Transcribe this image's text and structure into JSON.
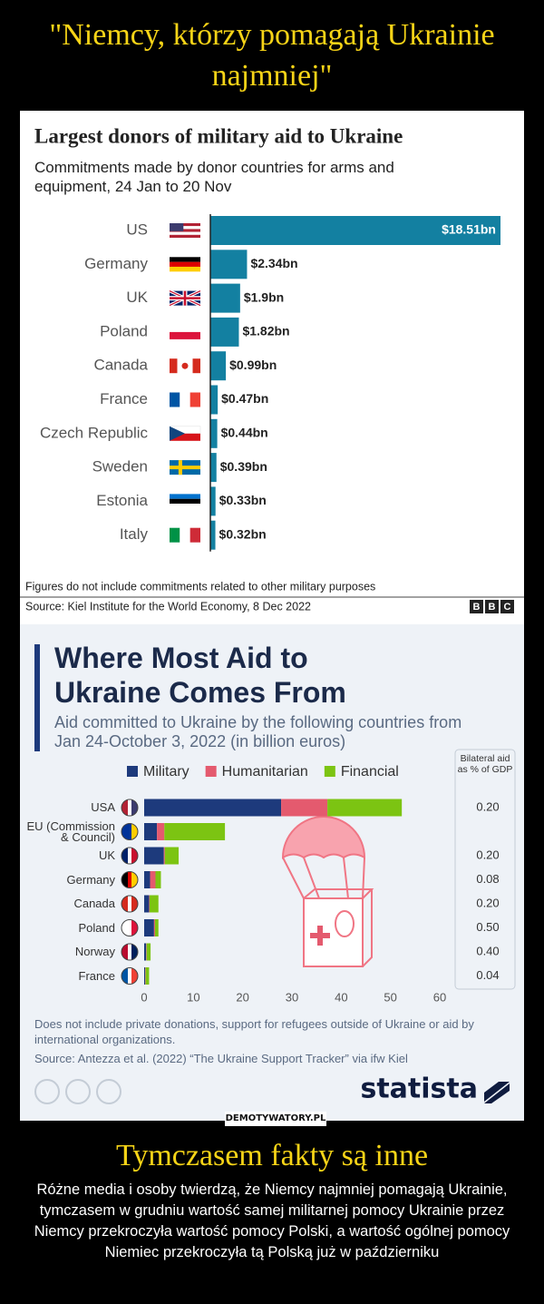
{
  "header": {
    "title": "\"Niemcy, którzy pomagają Ukrainie najmniej\""
  },
  "chart_data": [
    {
      "type": "bar",
      "orientation": "horizontal",
      "title": "Largest donors of military aid to Ukraine",
      "subtitle": "Commitments made by donor countries for arms and equipment, 24 Jan to 20 Nov",
      "categories": [
        "US",
        "Germany",
        "UK",
        "Poland",
        "Canada",
        "France",
        "Czech Republic",
        "Sweden",
        "Estonia",
        "Italy"
      ],
      "values": [
        18.51,
        2.34,
        1.9,
        1.82,
        0.99,
        0.47,
        0.44,
        0.39,
        0.33,
        0.32
      ],
      "value_labels": [
        "$18.51bn",
        "$2.34bn",
        "$1.9bn",
        "$1.82bn",
        "$0.99bn",
        "$0.47bn",
        "$0.44bn",
        "$0.39bn",
        "$0.33bn",
        "$0.32bn"
      ],
      "color": "#1380a1",
      "note": "Figures do not include commitments related to other military purposes",
      "source": "Source: Kiel Institute for the World Economy, 8 Dec 2022",
      "logo": [
        "B",
        "B",
        "C"
      ]
    },
    {
      "type": "stacked_bar",
      "orientation": "horizontal",
      "title": "Where Most Aid to Ukraine Comes From",
      "subtitle": "Aid committed to Ukraine by the following countries from Jan 24-October 3, 2022 (in billion euros)",
      "categories": [
        "USA",
        "EU (Commission & Council)",
        "UK",
        "Germany",
        "Canada",
        "Poland",
        "Norway",
        "France"
      ],
      "series": [
        {
          "name": "Military",
          "color": "#1d3a7c",
          "values": [
            27.8,
            2.6,
            4.0,
            1.2,
            1.0,
            2.0,
            0.4,
            0.2
          ]
        },
        {
          "name": "Humanitarian",
          "color": "#e45a6e",
          "values": [
            9.4,
            1.5,
            0.2,
            1.1,
            0.1,
            0.2,
            0.1,
            0.1
          ]
        },
        {
          "name": "Financial",
          "color": "#7cc412",
          "values": [
            15.1,
            12.3,
            2.8,
            1.1,
            1.8,
            0.7,
            0.8,
            0.7
          ]
        }
      ],
      "xlim": [
        0,
        60
      ],
      "xticks": [
        0,
        10,
        20,
        30,
        40,
        50,
        60
      ],
      "grid": false,
      "legend": "top",
      "gdp_share": {
        "title": "Bilateral aid as % of GDP",
        "values": [
          0.2,
          null,
          0.2,
          0.08,
          0.2,
          0.5,
          0.4,
          0.04
        ],
        "value_labels": [
          "0.20",
          null,
          "0.20",
          "0.08",
          "0.20",
          "0.50",
          "0.40",
          "0.04"
        ]
      },
      "note": "Does not include private donations, support for refugees outside of Ukraine or aid by international organizations.",
      "source": "Source: Antezza et al. (2022) “The Ukraine Support Tracker” via ifw Kiel",
      "logo": "statista"
    }
  ],
  "watermark": "DEMOTYWATORY.PL",
  "footer": {
    "title": "Tymczasem fakty są inne",
    "text": "Różne media i osoby twierdzą, że Niemcy najmniej pomagają Ukrainie, tymczasem w grudniu wartość samej militarnej pomocy Ukrainie przez Niemcy przekroczyła wartość pomocy Polski, a wartość ogólnej pomocy Niemiec przekroczyła tą Polską już w październiku"
  }
}
